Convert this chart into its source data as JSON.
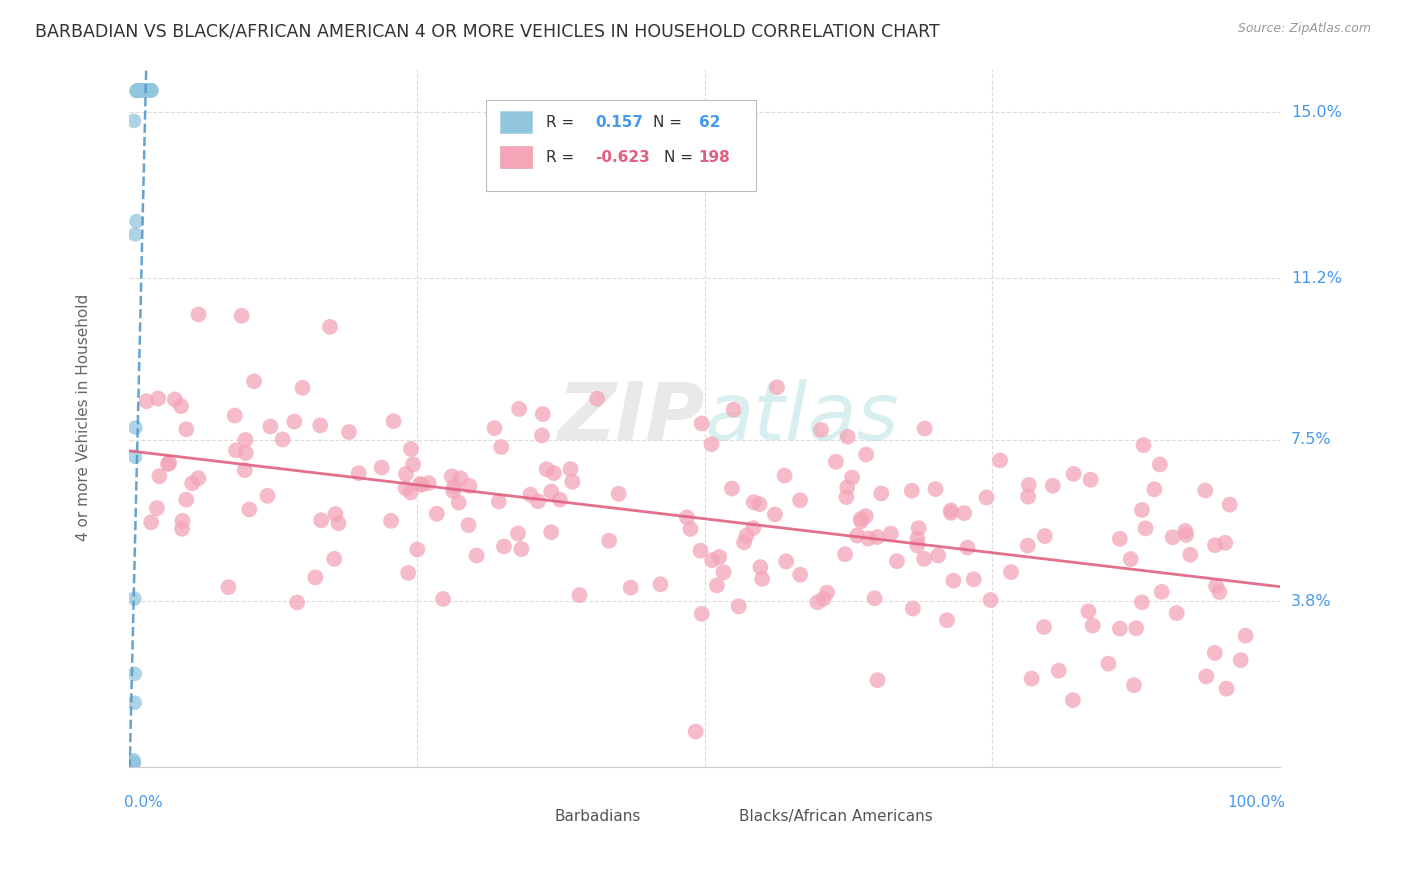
{
  "title": "BARBADIAN VS BLACK/AFRICAN AMERICAN 4 OR MORE VEHICLES IN HOUSEHOLD CORRELATION CHART",
  "source": "Source: ZipAtlas.com",
  "ylabel": "4 or more Vehicles in Household",
  "ytick_values": [
    0.0,
    0.038,
    0.075,
    0.112,
    0.15
  ],
  "ytick_labels": [
    "",
    "3.8%",
    "7.5%",
    "11.2%",
    "15.0%"
  ],
  "xlim": [
    0.0,
    1.0
  ],
  "ylim": [
    0.0,
    0.16
  ],
  "watermark": "ZIPatlas",
  "blue_color": "#92c5de",
  "pink_color": "#f4a5b8",
  "trend_blue_color": "#5599cc",
  "trend_pink_color": "#e06080",
  "background": "#ffffff",
  "grid_color": "#dddddd",
  "r1": 0.157,
  "n1": 62,
  "r2": -0.623,
  "n2": 198,
  "seed": 42
}
